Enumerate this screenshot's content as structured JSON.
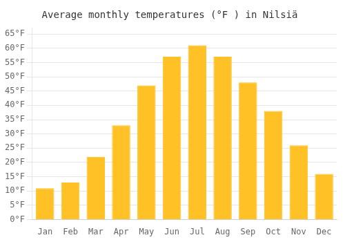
{
  "chart_data": {
    "type": "bar",
    "title": "Average monthly temperatures (°F ) in Nilsiä",
    "categories": [
      "Jan",
      "Feb",
      "Mar",
      "Apr",
      "May",
      "Jun",
      "Jul",
      "Aug",
      "Sep",
      "Oct",
      "Nov",
      "Dec"
    ],
    "values": [
      11,
      13,
      22,
      33,
      47,
      57,
      61,
      57,
      48,
      38,
      26,
      16
    ],
    "color": "#FFC125",
    "ylim": [
      0,
      67
    ],
    "yticks": [
      {
        "value": 0,
        "label": "0°F"
      },
      {
        "value": 5,
        "label": "5°F"
      },
      {
        "value": 10,
        "label": "10°F"
      },
      {
        "value": 15,
        "label": "15°F"
      },
      {
        "value": 20,
        "label": "20°F"
      },
      {
        "value": 25,
        "label": "25°F"
      },
      {
        "value": 30,
        "label": "30°F"
      },
      {
        "value": 35,
        "label": "35°F"
      },
      {
        "value": 40,
        "label": "40°F"
      },
      {
        "value": 45,
        "label": "45°F"
      },
      {
        "value": 50,
        "label": "50°F"
      },
      {
        "value": 55,
        "label": "55°F"
      },
      {
        "value": 60,
        "label": "60°F"
      },
      {
        "value": 65,
        "label": "65°F"
      }
    ],
    "grid": true
  }
}
